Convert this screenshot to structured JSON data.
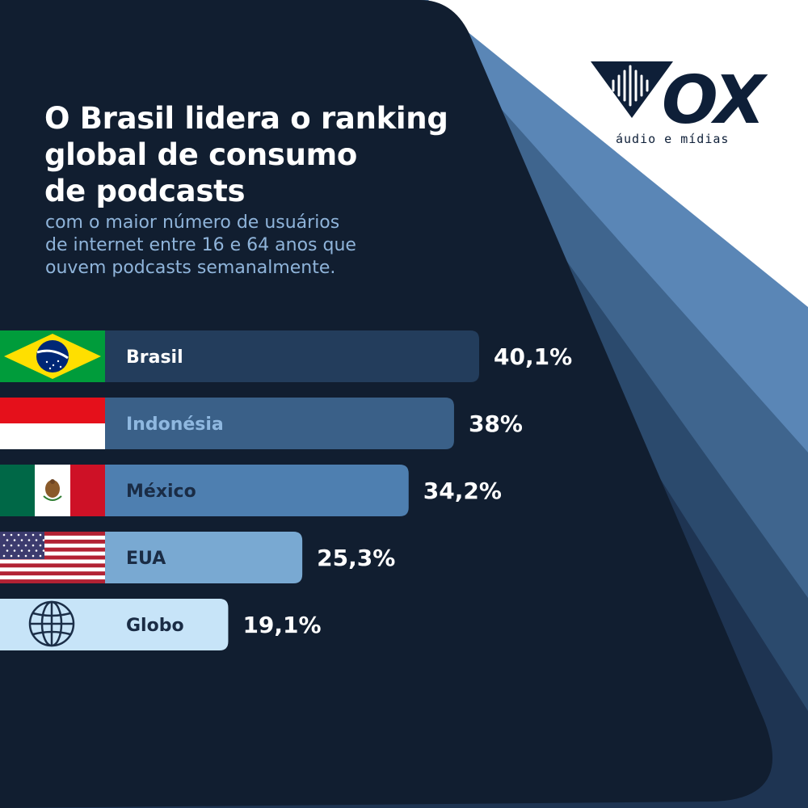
{
  "header": {
    "title_lines": [
      "O Brasil lidera o ranking",
      "global de consumo",
      "de podcasts"
    ],
    "subtitle_lines": [
      "com o maior número de usuários",
      "de internet entre 16 e 64 anos que",
      "ouvem podcasts semanalmente."
    ]
  },
  "logo": {
    "text": "OX",
    "tagline": "áudio e mídias",
    "icon": "sound-wave-icon"
  },
  "chart_data": {
    "type": "bar",
    "orientation": "horizontal",
    "categories": [
      "Brasil",
      "Indonésia",
      "México",
      "EUA",
      "Globo"
    ],
    "values": [
      40.1,
      38,
      34.2,
      25.3,
      19.1
    ],
    "value_labels": [
      "40,1%",
      "38%",
      "34,2%",
      "25,3%",
      "19,1%"
    ],
    "icons": [
      "brazil-flag-icon",
      "indonesia-flag-icon",
      "mexico-flag-icon",
      "usa-flag-icon",
      "globe-icon"
    ],
    "bar_colors": [
      "#233d5c",
      "#3a6088",
      "#4e7fb0",
      "#79a9d2",
      "#c7e4f8"
    ],
    "label_colors": [
      "#ffffff",
      "#8fb8e0",
      "#1a2c45",
      "#1a2c45",
      "#1a2c45"
    ],
    "value_color": "#ffffff",
    "unit": "%",
    "xlim": [
      0,
      40.1
    ],
    "title": "",
    "xlabel": "",
    "ylabel": ""
  }
}
